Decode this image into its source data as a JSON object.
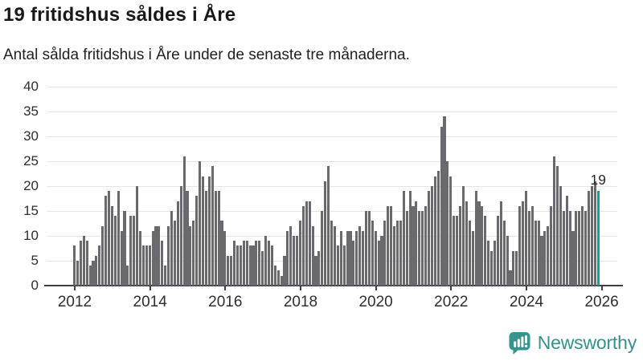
{
  "header": {
    "title": "19 fritidshus såldes i Åre",
    "subtitle": "Antal sålda fritidshus i Åre under de senaste tre månaderna."
  },
  "chart_data": {
    "type": "bar",
    "title": "19 fritidshus såldes i Åre",
    "subtitle": "Antal sålda fritidshus i Åre under de senaste tre månaderna.",
    "x_start": "2012-01",
    "x_interval": "month",
    "values": [
      8,
      5,
      9,
      10,
      9,
      4,
      5,
      6,
      8,
      12,
      18,
      19,
      16,
      14,
      19,
      11,
      15,
      4,
      14,
      14,
      20,
      11,
      8,
      8,
      8,
      11,
      12,
      12,
      9,
      4,
      12,
      15,
      13,
      17,
      20,
      26,
      19,
      12,
      13,
      18,
      25,
      22,
      19,
      22,
      24,
      19,
      19,
      13,
      11,
      6,
      6,
      9,
      8,
      8,
      9,
      9,
      8,
      8,
      9,
      9,
      7,
      10,
      9,
      8,
      4,
      3,
      2,
      6,
      11,
      12,
      10,
      10,
      13,
      16,
      17,
      17,
      12,
      6,
      7,
      15,
      21,
      24,
      13,
      12,
      8,
      11,
      8,
      11,
      11,
      9,
      11,
      12,
      11,
      15,
      15,
      13,
      11,
      9,
      10,
      13,
      16,
      16,
      12,
      13,
      13,
      19,
      15,
      19,
      16,
      17,
      15,
      15,
      16,
      19,
      20,
      22,
      23,
      32,
      34,
      25,
      22,
      14,
      14,
      16,
      20,
      17,
      13,
      11,
      19,
      17,
      16,
      14,
      9,
      7,
      9,
      14,
      17,
      13,
      10,
      3,
      7,
      7,
      16,
      17,
      19,
      15,
      16,
      13,
      13,
      10,
      11,
      12,
      16,
      26,
      24,
      20,
      15,
      18,
      15,
      11,
      15,
      15,
      16,
      15,
      19,
      20,
      21,
      19
    ],
    "highlight_last_value": 19,
    "annotation": {
      "text": "19"
    },
    "yticks": [
      0,
      5,
      10,
      15,
      20,
      25,
      30,
      35,
      40
    ],
    "xticks": [
      "2012",
      "2014",
      "2016",
      "2018",
      "2020",
      "2022",
      "2024",
      "2026"
    ],
    "ylim": [
      0,
      40
    ],
    "grid": true,
    "legend": "none",
    "bar_color": "#6a6a6e",
    "highlight_color": "#17a097"
  },
  "footer": {
    "brand": "Newsworthy",
    "brand_color": "#34938a",
    "logo_icon": "bar-chart-speech-bubble-icon"
  }
}
